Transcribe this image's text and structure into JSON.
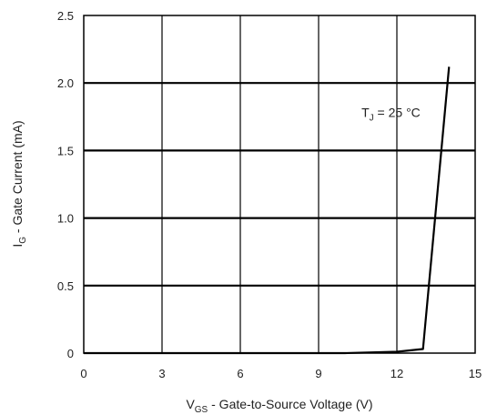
{
  "chart_data": {
    "type": "line",
    "xlabel": {
      "main": "V",
      "sub": "GS",
      "rest": " - Gate-to-Source Voltage (V)"
    },
    "ylabel": {
      "main": "I",
      "sub": "G",
      "rest": " - Gate Current (mA)"
    },
    "xlim": [
      0,
      15
    ],
    "ylim": [
      0,
      2.5
    ],
    "xticks": [
      0,
      3,
      6,
      9,
      12,
      15
    ],
    "xtick_labels": [
      "0",
      "3",
      "6",
      "9",
      "12",
      "15"
    ],
    "yticks": [
      0,
      0.5,
      1.0,
      1.5,
      2.0,
      2.5
    ],
    "ytick_labels": [
      "0",
      "0.5",
      "1.0",
      "1.5",
      "2.0",
      "2.5"
    ],
    "grid": true,
    "series": [
      {
        "x": [
          0,
          10,
          12,
          13,
          14
        ],
        "y": [
          0,
          0.0,
          0.01,
          0.03,
          2.12
        ]
      }
    ],
    "annotations": [
      {
        "main": "T",
        "sub": "J",
        "rest": " = 25 °C",
        "x": 12.9,
        "y": 1.75
      }
    ]
  }
}
